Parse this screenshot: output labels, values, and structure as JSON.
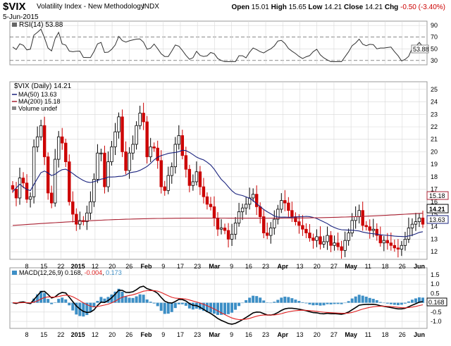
{
  "header": {
    "symbol": "$VIX",
    "name": "Volatility Index - New Methodology",
    "exchange": "INDX",
    "date": "5-Jun-2015",
    "open_label": "Open",
    "open": "15.01",
    "high_label": "High",
    "high": "15.65",
    "low_label": "Low",
    "low": "14.21",
    "close_label": "Close",
    "close": "14.21",
    "chg_label": "Chg",
    "chg": "-0.50 (-3.40%)"
  },
  "colors": {
    "up_candle": "#000000",
    "down_candle": "#cc0000",
    "ma50": "#1a237e",
    "ma200": "#aa2233",
    "macd_line": "#000000",
    "macd_signal": "#e02020",
    "histogram": "#3d8fc6",
    "grid": "#d8d8d8"
  },
  "rsi_panel": {
    "legend": "RSI(14) 53.88",
    "value_tag": "53.88",
    "yticks": [
      "90",
      "70",
      "50",
      "30"
    ]
  },
  "price_panel": {
    "legend_vix": "$VIX (Daily) 14.21",
    "legend_ma50": "MA(50) 13.63",
    "legend_ma200": "MA(200) 15.18",
    "legend_volume": "Volume undef",
    "tag_ma200": "15.18",
    "tag_close": "14.21",
    "tag_ma50": "13.63",
    "yticks": [
      "25",
      "24",
      "23",
      "22",
      "21",
      "20",
      "19",
      "18",
      "17",
      "16",
      "15",
      "14",
      "13",
      "12"
    ]
  },
  "macd_panel": {
    "legend_prefix": "MACD(12,26,9)",
    "legend_macd": "0.168",
    "legend_signal": "-0.004",
    "legend_hist": "0.173",
    "tag_value": "0.168",
    "yticks": [
      "1.5",
      "1.0",
      "0.5",
      "0.0",
      "-0.5",
      "-1.0"
    ]
  },
  "x_labels": [
    {
      "label": "8",
      "bold": false
    },
    {
      "label": "15",
      "bold": false
    },
    {
      "label": "22",
      "bold": false
    },
    {
      "label": "2015",
      "bold": true
    },
    {
      "label": "12",
      "bold": false
    },
    {
      "label": "20",
      "bold": false
    },
    {
      "label": "26",
      "bold": false
    },
    {
      "label": "Feb",
      "bold": true
    },
    {
      "label": "9",
      "bold": false
    },
    {
      "label": "17",
      "bold": false
    },
    {
      "label": "23",
      "bold": false
    },
    {
      "label": "Mar",
      "bold": true
    },
    {
      "label": "9",
      "bold": false
    },
    {
      "label": "16",
      "bold": false
    },
    {
      "label": "23",
      "bold": false
    },
    {
      "label": "Apr",
      "bold": true
    },
    {
      "label": "13",
      "bold": false
    },
    {
      "label": "20",
      "bold": false
    },
    {
      "label": "27",
      "bold": false
    },
    {
      "label": "May",
      "bold": true
    },
    {
      "label": "11",
      "bold": false
    },
    {
      "label": "18",
      "bold": false
    },
    {
      "label": "26",
      "bold": false
    },
    {
      "label": "Jun",
      "bold": true
    }
  ],
  "chart_data": {
    "type": "candlestick",
    "ohlc_closes": [
      17.0,
      16.3,
      17.9,
      17.5,
      16.2,
      16.4,
      20.4,
      21.2,
      22.1,
      19.6,
      16.7,
      15.9,
      19.4,
      21.2,
      20.7,
      19.2,
      16.0,
      15.0,
      14.2,
      14.5,
      14.4,
      15.1,
      16.0,
      17.8,
      19.9,
      19.9,
      17.2,
      19.2,
      20.4,
      21.6,
      22.8,
      20.0,
      18.5,
      19.9,
      20.6,
      22.1,
      23.1,
      22.4,
      19.6,
      20.4,
      20.3,
      19.3,
      17.2,
      16.9,
      18.1,
      18.8,
      20.6,
      21.3,
      19.7,
      18.6,
      17.3,
      17.6,
      18.4,
      17.2,
      16.4,
      15.8,
      15.6,
      14.7,
      13.8,
      13.9,
      13.7,
      13.0,
      13.4,
      14.3,
      15.2,
      15.5,
      15.8,
      16.3,
      16.6,
      15.6,
      14.8,
      13.5,
      13.3,
      13.9,
      14.6,
      15.4,
      16.1,
      15.9,
      15.3,
      14.8,
      14.4,
      14.1,
      13.8,
      13.5,
      13.1,
      12.9,
      13.2,
      12.6,
      12.8,
      13.3,
      12.5,
      12.7,
      12.4,
      12.1,
      12.9,
      13.5,
      14.5,
      14.8,
      15.3,
      14.1,
      14.0,
      13.7,
      13.8,
      13.3,
      12.7,
      12.9,
      12.7,
      12.5,
      12.3,
      12.2,
      12.5,
      13.0,
      13.9,
      14.2,
      14.4,
      14.7,
      14.2
    ],
    "ma50_label": "MA(50) 13.63",
    "ma200_label": "MA(200) 15.18",
    "rsi_last": 53.88,
    "macd_last": 0.168,
    "signal_last": -0.004,
    "hist_last": 0.173,
    "price_ylim": [
      11.5,
      25.5
    ],
    "macd_ylim": [
      -1.3,
      1.8
    ],
    "rsi_ylim": [
      25,
      95
    ]
  }
}
